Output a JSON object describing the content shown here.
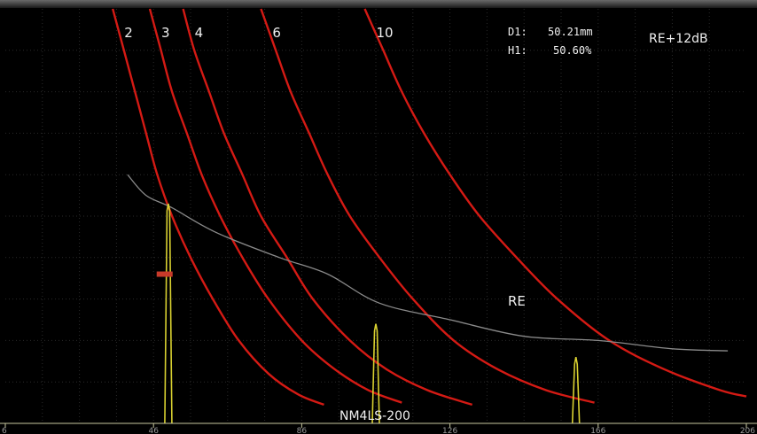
{
  "chart_data": {
    "type": "line",
    "xlim": [
      6,
      206
    ],
    "ylim": [
      0,
      100
    ],
    "x_ticks": [
      6,
      46,
      86,
      126,
      166,
      206
    ],
    "x_tick_labels": [
      "6",
      "46",
      "86",
      "126",
      "166",
      "206"
    ],
    "grid": true,
    "colors": {
      "dgs": "#d41a14",
      "re": "#8a8a8a",
      "echo": "#d8d030",
      "marker": "#c83a2a",
      "axis": "#c8c8a0"
    },
    "dgs_curves": [
      {
        "label": "2",
        "points": [
          [
            35,
            100
          ],
          [
            38,
            90
          ],
          [
            41,
            80
          ],
          [
            44,
            70
          ],
          [
            47,
            60
          ],
          [
            51,
            50
          ],
          [
            56,
            40
          ],
          [
            62,
            30
          ],
          [
            69,
            20
          ],
          [
            77,
            12
          ],
          [
            85,
            7
          ],
          [
            92,
            4.5
          ]
        ]
      },
      {
        "label": "3",
        "points": [
          [
            45,
            100
          ],
          [
            48,
            90
          ],
          [
            51,
            80
          ],
          [
            55,
            70
          ],
          [
            59,
            60
          ],
          [
            64,
            50
          ],
          [
            70,
            40
          ],
          [
            77,
            30
          ],
          [
            86,
            20
          ],
          [
            95,
            13
          ],
          [
            104,
            8
          ],
          [
            113,
            5
          ]
        ]
      },
      {
        "label": "4",
        "points": [
          [
            54,
            100
          ],
          [
            57,
            90
          ],
          [
            61,
            80
          ],
          [
            65,
            70
          ],
          [
            70,
            60
          ],
          [
            75,
            50
          ],
          [
            82,
            40
          ],
          [
            89,
            30
          ],
          [
            99,
            20
          ],
          [
            109,
            13
          ],
          [
            120,
            8
          ],
          [
            132,
            4.5
          ]
        ]
      },
      {
        "label": "6",
        "points": [
          [
            75,
            100
          ],
          [
            79,
            90
          ],
          [
            83,
            80
          ],
          [
            88,
            70
          ],
          [
            93,
            60
          ],
          [
            99,
            50
          ],
          [
            107,
            40
          ],
          [
            116,
            30
          ],
          [
            127,
            20
          ],
          [
            139,
            13
          ],
          [
            152,
            8
          ],
          [
            165,
            5
          ]
        ]
      },
      {
        "label": "10",
        "points": [
          [
            103,
            100
          ],
          [
            108,
            90
          ],
          [
            113,
            80
          ],
          [
            119,
            70
          ],
          [
            126,
            60
          ],
          [
            134,
            50
          ],
          [
            144,
            40
          ],
          [
            155,
            30
          ],
          [
            169,
            20
          ],
          [
            184,
            13
          ],
          [
            199,
            8
          ],
          [
            206,
            6.5
          ]
        ]
      }
    ],
    "re_curve": {
      "label": "RE",
      "points": [
        [
          39,
          60
        ],
        [
          44,
          55
        ],
        [
          51,
          52
        ],
        [
          63,
          46
        ],
        [
          80,
          40
        ],
        [
          93,
          36
        ],
        [
          107,
          29
        ],
        [
          126,
          25
        ],
        [
          146,
          21
        ],
        [
          166,
          20
        ],
        [
          186,
          18
        ],
        [
          201,
          17.5
        ]
      ]
    },
    "echoes": [
      {
        "x": 50,
        "height": 53
      },
      {
        "x": 106,
        "height": 24
      },
      {
        "x": 160,
        "height": 16
      }
    ],
    "gate_marker": {
      "x": 49,
      "y": 36
    },
    "readout": {
      "d_label": "D1:",
      "d_value": "50.21mm",
      "h_label": "H1:",
      "h_value": "50.60%"
    },
    "gain_label": "RE+12dB",
    "probe_label": "NM4LS-200"
  }
}
